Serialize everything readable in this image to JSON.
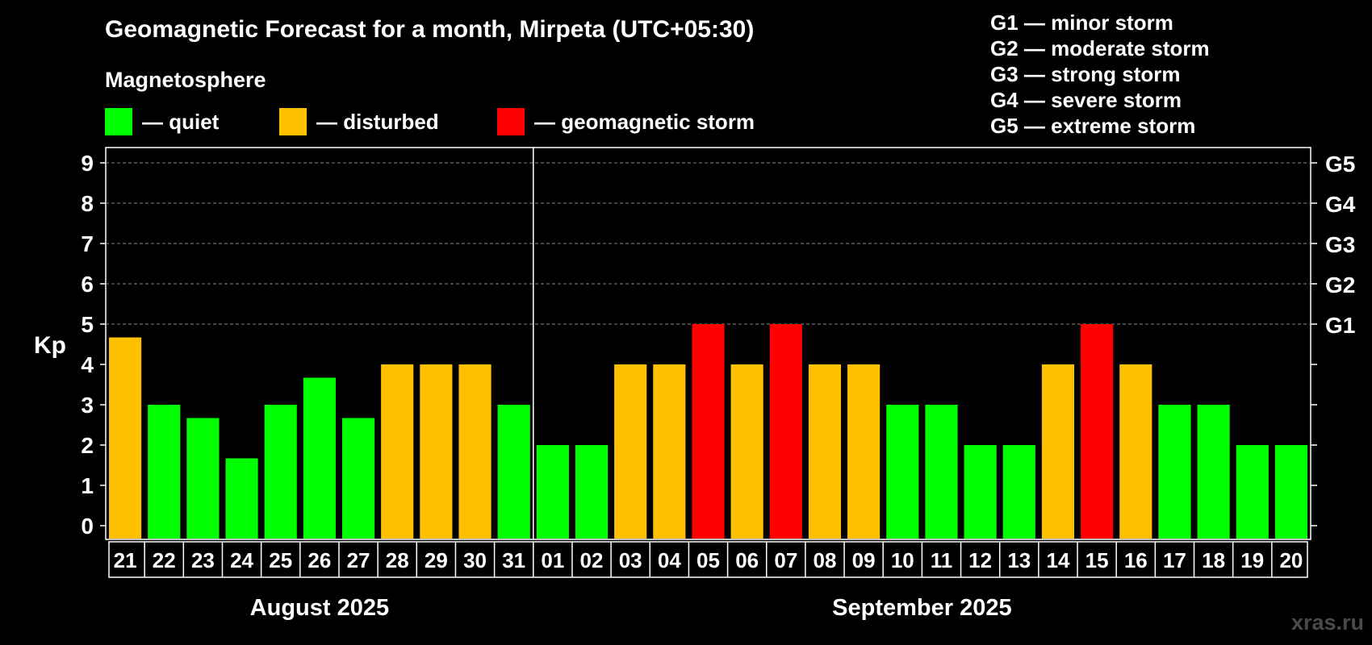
{
  "title": "Geomagnetic Forecast for a month, Mirpeta (UTC+05:30)",
  "legend": {
    "heading": "Magnetosphere",
    "items": [
      {
        "label": "— quiet",
        "color": "#00ff00"
      },
      {
        "label": "— disturbed",
        "color": "#ffc000"
      },
      {
        "label": "— geomagnetic storm",
        "color": "#ff0000"
      }
    ]
  },
  "gscale": [
    "G1 — minor storm",
    "G2 — moderate storm",
    "G3 — strong storm",
    "G4 — severe storm",
    "G5 — extreme storm"
  ],
  "watermark": "xras.ru",
  "colors": {
    "quiet": "#00ff00",
    "disturbed": "#ffc000",
    "storm": "#ff0000"
  },
  "chart_data": {
    "type": "bar",
    "ylabel": "Kp",
    "ylim": [
      0,
      9
    ],
    "yticks": [
      0,
      1,
      2,
      3,
      4,
      5,
      6,
      7,
      8,
      9
    ],
    "right_axis_labels": [
      {
        "kp": 5,
        "label": "G1"
      },
      {
        "kp": 6,
        "label": "G2"
      },
      {
        "kp": 7,
        "label": "G3"
      },
      {
        "kp": 8,
        "label": "G4"
      },
      {
        "kp": 9,
        "label": "G5"
      }
    ],
    "grid": "dashed horizontal lines at Kp 5–9",
    "months": [
      {
        "label": "August 2025",
        "start_index": 0,
        "count": 11
      },
      {
        "label": "September 2025",
        "start_index": 11,
        "count": 20
      }
    ],
    "categories": [
      "21",
      "22",
      "23",
      "24",
      "25",
      "26",
      "27",
      "28",
      "29",
      "30",
      "31",
      "01",
      "02",
      "03",
      "04",
      "05",
      "06",
      "07",
      "08",
      "09",
      "10",
      "11",
      "12",
      "13",
      "14",
      "15",
      "16",
      "17",
      "18",
      "19",
      "20"
    ],
    "values": [
      4.67,
      3,
      2.67,
      1.67,
      3,
      3.67,
      2.67,
      4,
      4,
      4,
      3,
      2,
      2,
      4,
      4,
      5,
      4,
      5,
      4,
      4,
      3,
      3,
      2,
      2,
      4,
      5,
      4,
      3,
      3,
      2,
      2
    ],
    "levels": [
      "disturbed",
      "quiet",
      "quiet",
      "quiet",
      "quiet",
      "quiet",
      "quiet",
      "disturbed",
      "disturbed",
      "disturbed",
      "quiet",
      "quiet",
      "quiet",
      "disturbed",
      "disturbed",
      "storm",
      "disturbed",
      "storm",
      "disturbed",
      "disturbed",
      "quiet",
      "quiet",
      "quiet",
      "quiet",
      "disturbed",
      "storm",
      "disturbed",
      "quiet",
      "quiet",
      "quiet",
      "quiet"
    ]
  }
}
